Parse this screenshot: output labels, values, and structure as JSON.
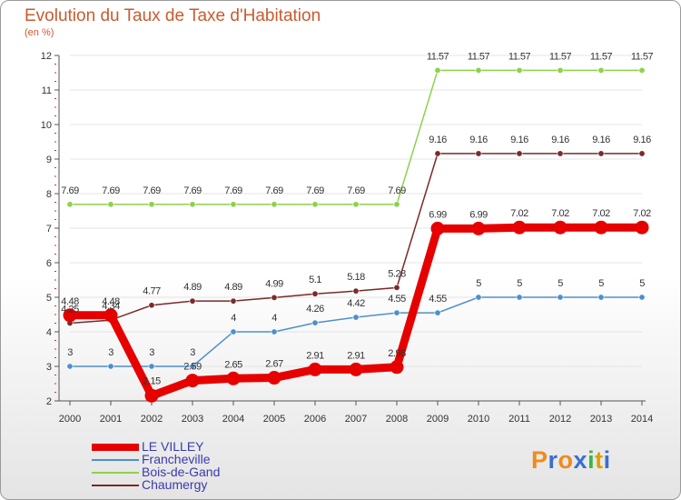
{
  "chart_data": {
    "type": "line",
    "title": "Evolution du Taux de Taxe d'Habitation",
    "ylabel": "(en %)",
    "xlabel": "",
    "ylim": [
      2,
      12
    ],
    "yticks": [
      "2",
      "3",
      "4",
      "5",
      "6",
      "7",
      "8",
      "9",
      "10",
      "11",
      "12"
    ],
    "x": [
      "2000",
      "2001",
      "2002",
      "2003",
      "2004",
      "2005",
      "2006",
      "2007",
      "2008",
      "2009",
      "2010",
      "2011",
      "2012",
      "2013",
      "2014"
    ],
    "series": [
      {
        "name": "LE VILLEY",
        "color": "#e60000",
        "role": "main",
        "values": [
          4.48,
          4.48,
          2.15,
          2.59,
          2.65,
          2.67,
          2.91,
          2.91,
          2.98,
          6.99,
          6.99,
          7.02,
          7.02,
          7.02,
          7.02
        ],
        "labels": [
          "4.48",
          "4.48",
          "2.15",
          "2.59",
          "2.65",
          "2.67",
          "2.91",
          "2.91",
          "2.98",
          "6.99",
          "6.99",
          "7.02",
          "7.02",
          "7.02",
          "7.02"
        ]
      },
      {
        "name": "Francheville",
        "color": "#4d8fcc",
        "role": "thin",
        "values": [
          3,
          3,
          3,
          3,
          4,
          4,
          4.26,
          4.42,
          4.55,
          4.55,
          5,
          5,
          5,
          5,
          5
        ],
        "labels": [
          "3",
          "3",
          "3",
          "3",
          "4",
          "4",
          "4.26",
          "4.42",
          "4.55",
          "4.55",
          "5",
          "5",
          "5",
          "5",
          "5"
        ]
      },
      {
        "name": "Bois-de-Gand",
        "color": "#8ed14d",
        "role": "thin",
        "values": [
          7.69,
          7.69,
          7.69,
          7.69,
          7.69,
          7.69,
          7.69,
          7.69,
          7.69,
          11.57,
          11.57,
          11.57,
          11.57,
          11.57,
          11.57
        ],
        "labels": [
          "7.69",
          "7.69",
          "7.69",
          "7.69",
          "7.69",
          "7.69",
          "7.69",
          "7.69",
          "7.69",
          "11.57",
          "11.57",
          "11.57",
          "11.57",
          "11.57",
          "11.57"
        ]
      },
      {
        "name": "Chaumergy",
        "color": "#7a2a2a",
        "role": "thin",
        "values": [
          4.25,
          4.34,
          4.77,
          4.89,
          4.89,
          4.99,
          5.1,
          5.18,
          5.28,
          9.16,
          9.16,
          9.16,
          9.16,
          9.16,
          9.16
        ],
        "labels": [
          "4.25",
          "4.34",
          "4.77",
          "4.89",
          "4.89",
          "4.99",
          "5.1",
          "5.18",
          "5.28",
          "9.16",
          "9.16",
          "9.16",
          "9.16",
          "9.16",
          "9.16"
        ]
      }
    ],
    "legend_position": "bottom-left"
  },
  "logo": {
    "letters": [
      "P",
      "r",
      "o",
      "x",
      "i",
      "t",
      "i"
    ],
    "colors": [
      "#f08a1c",
      "#3b6fd1",
      "#f08a1c",
      "#3b6fd1",
      "#3ab54a",
      "#e0a000",
      "#3b6fd1"
    ]
  }
}
